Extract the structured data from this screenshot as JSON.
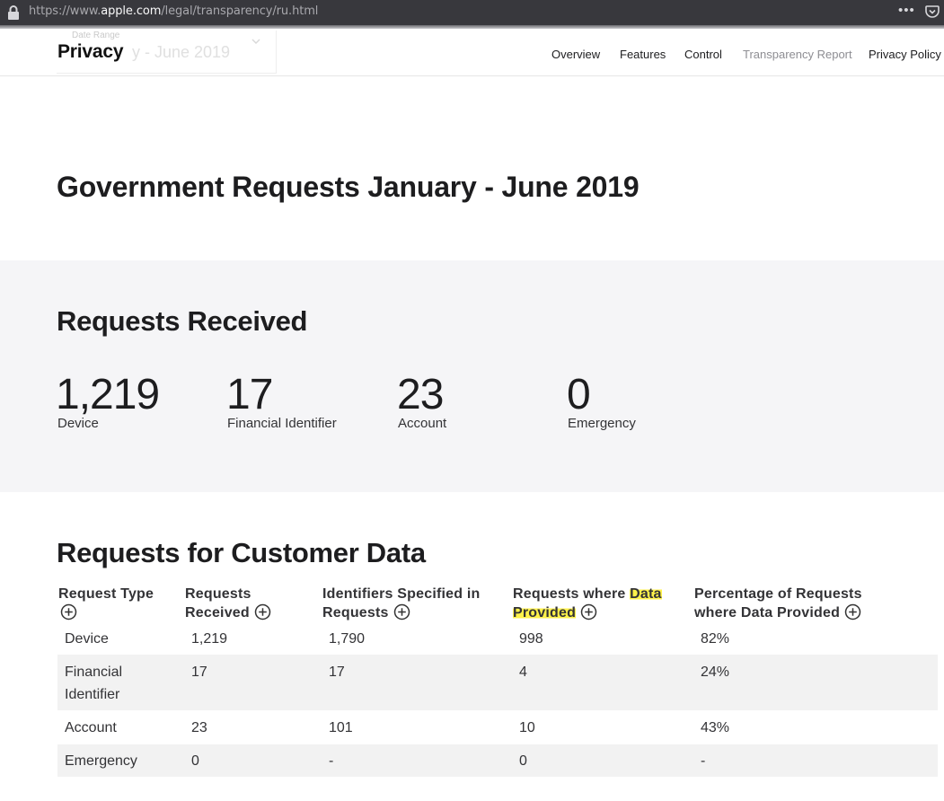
{
  "browser": {
    "url_prefix": "https://www.",
    "url_host": "apple.com",
    "url_path": "/legal/transparency/ru.html",
    "menu_glyph": "•••"
  },
  "localnav": {
    "brand": "Privacy",
    "ghost_label": "Date Range",
    "ghost_value": "y - June 2019",
    "items": [
      {
        "label": "Overview"
      },
      {
        "label": "Features"
      },
      {
        "label": "Control"
      },
      {
        "label": "Transparency Report",
        "current": true
      },
      {
        "label": "Privacy Policy"
      }
    ]
  },
  "page": {
    "title": "Government Requests January - June 2019"
  },
  "requests_received": {
    "title": "Requests Received",
    "stats": [
      {
        "value": "1,219",
        "label": "Device"
      },
      {
        "value": "17",
        "label": "Financial Identifier"
      },
      {
        "value": "23",
        "label": "Account"
      },
      {
        "value": "0",
        "label": "Emergency"
      }
    ]
  },
  "customer_data": {
    "title": "Requests for Customer Data",
    "headers": [
      {
        "line1": "Request Type",
        "line2": ""
      },
      {
        "line1": "Requests",
        "line2": "Received"
      },
      {
        "line1": "Identifiers Specified in",
        "line2": "Requests"
      },
      {
        "line1": "Requests where ",
        "line1_highlight": "Data",
        "line2": "Provided"
      },
      {
        "line1": "Percentage of Requests",
        "line2": "where Data Provided"
      }
    ],
    "rows": [
      {
        "type": "Device",
        "type2": "",
        "received": "1,219",
        "identifiers": "1,790",
        "provided": "998",
        "percentage": "82%"
      },
      {
        "type": "Financial",
        "type2": "Identifier",
        "received": "17",
        "identifiers": "17",
        "provided": "4",
        "percentage": "24%"
      },
      {
        "type": "Account",
        "type2": "",
        "received": "23",
        "identifiers": "101",
        "provided": "10",
        "percentage": "43%"
      },
      {
        "type": "Emergency",
        "type2": "",
        "received": "0",
        "identifiers": "-",
        "provided": "0",
        "percentage": "-"
      }
    ]
  },
  "colors": {
    "highlight": "#fff24a",
    "section_bg": "#f5f5f7",
    "row_stripe": "#f2f2f2",
    "browser_bar": "#38383d"
  }
}
